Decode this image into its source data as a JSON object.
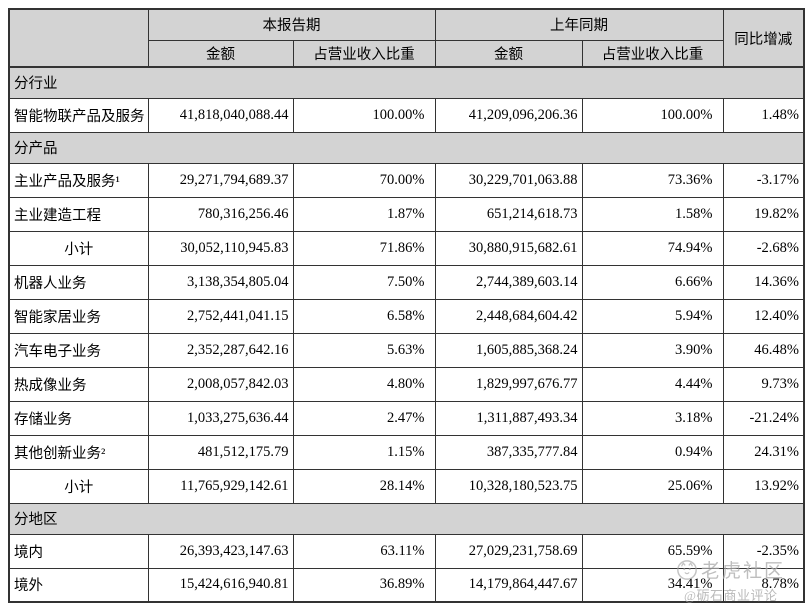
{
  "table": {
    "header": {
      "current_period": "本报告期",
      "prior_period": "上年同期",
      "yoy_change": "同比增减",
      "amount": "金额",
      "pct_of_revenue": "占营业收入比重"
    },
    "sections": [
      {
        "title": "分行业",
        "rows": [
          {
            "label": "智能物联产品及服务",
            "center": false,
            "cur_amount": "41,818,040,088.44",
            "cur_pct": "100.00%",
            "prior_amount": "41,209,096,206.36",
            "prior_pct": "100.00%",
            "yoy": "1.48%"
          }
        ]
      },
      {
        "title": "分产品",
        "rows": [
          {
            "label": "主业产品及服务¹",
            "center": false,
            "cur_amount": "29,271,794,689.37",
            "cur_pct": "70.00%",
            "prior_amount": "30,229,701,063.88",
            "prior_pct": "73.36%",
            "yoy": "-3.17%"
          },
          {
            "label": "主业建造工程",
            "center": false,
            "cur_amount": "780,316,256.46",
            "cur_pct": "1.87%",
            "prior_amount": "651,214,618.73",
            "prior_pct": "1.58%",
            "yoy": "19.82%"
          },
          {
            "label": "小计",
            "center": true,
            "cur_amount": "30,052,110,945.83",
            "cur_pct": "71.86%",
            "prior_amount": "30,880,915,682.61",
            "prior_pct": "74.94%",
            "yoy": "-2.68%"
          },
          {
            "label": "机器人业务",
            "center": false,
            "cur_amount": "3,138,354,805.04",
            "cur_pct": "7.50%",
            "prior_amount": "2,744,389,603.14",
            "prior_pct": "6.66%",
            "yoy": "14.36%"
          },
          {
            "label": "智能家居业务",
            "center": false,
            "cur_amount": "2,752,441,041.15",
            "cur_pct": "6.58%",
            "prior_amount": "2,448,684,604.42",
            "prior_pct": "5.94%",
            "yoy": "12.40%"
          },
          {
            "label": "汽车电子业务",
            "center": false,
            "cur_amount": "2,352,287,642.16",
            "cur_pct": "5.63%",
            "prior_amount": "1,605,885,368.24",
            "prior_pct": "3.90%",
            "yoy": "46.48%"
          },
          {
            "label": "热成像业务",
            "center": false,
            "cur_amount": "2,008,057,842.03",
            "cur_pct": "4.80%",
            "prior_amount": "1,829,997,676.77",
            "prior_pct": "4.44%",
            "yoy": "9.73%"
          },
          {
            "label": "存储业务",
            "center": false,
            "cur_amount": "1,033,275,636.44",
            "cur_pct": "2.47%",
            "prior_amount": "1,311,887,493.34",
            "prior_pct": "3.18%",
            "yoy": "-21.24%"
          },
          {
            "label": "其他创新业务²",
            "center": false,
            "cur_amount": "481,512,175.79",
            "cur_pct": "1.15%",
            "prior_amount": "387,335,777.84",
            "prior_pct": "0.94%",
            "yoy": "24.31%"
          },
          {
            "label": "小计",
            "center": true,
            "cur_amount": "11,765,929,142.61",
            "cur_pct": "28.14%",
            "prior_amount": "10,328,180,523.75",
            "prior_pct": "25.06%",
            "yoy": "13.92%"
          }
        ]
      },
      {
        "title": "分地区",
        "rows": [
          {
            "label": "境内",
            "center": false,
            "cur_amount": "26,393,423,147.63",
            "cur_pct": "63.11%",
            "prior_amount": "27,029,231,758.69",
            "prior_pct": "65.59%",
            "yoy": "-2.35%"
          },
          {
            "label": "境外",
            "center": false,
            "cur_amount": "15,424,616,940.81",
            "cur_pct": "36.89%",
            "prior_amount": "14,179,864,447.67",
            "prior_pct": "34.41%",
            "yoy": "8.78%"
          }
        ]
      }
    ]
  },
  "watermark": {
    "brand": "老虎社区",
    "handle": "@砺石商业评论"
  },
  "colors": {
    "header_bg": "#d3d3d3",
    "border": "#333333",
    "watermark": "#a9a9a9"
  }
}
